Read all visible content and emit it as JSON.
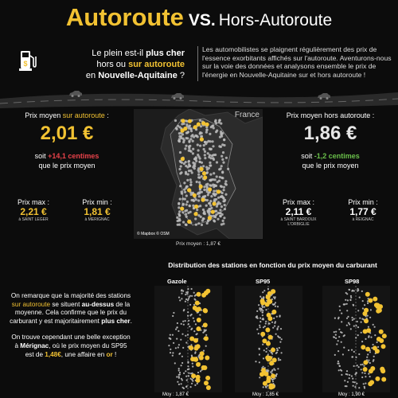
{
  "header": {
    "title_main": "Autoroute",
    "title_vs": "VS.",
    "title_rest": "Hors-Autoroute"
  },
  "question": {
    "l1a": "Le plein est-il ",
    "l1b": "plus cher",
    "l2a": "hors ou ",
    "l2b": "sur autoroute",
    "l3a": "en ",
    "l3b": "Nouvelle-Aquitaine",
    "l3c": " ?"
  },
  "intro": {
    "l1": "Les automobilistes se plaignent régulièrement des prix de",
    "l2": "l'essence exorbitants affichés sur l'autoroute. Aventurons-nous",
    "l3": "sur la voie des données et analysons ensemble le prix de",
    "l4": "l'énergie en Nouvelle-Aquitaine sur et hors autoroute !"
  },
  "map": {
    "label": "France",
    "credit": "© Mapbox  © OSM",
    "avg_caption": "Prix moyen : 1,87 €"
  },
  "left": {
    "label_a": "Prix moyen ",
    "label_b": "sur autoroute",
    "label_c": " :",
    "price": "2,01 €",
    "diff_a": "soit ",
    "diff_b": "+14,1 centimes",
    "diff_l2": "que le prix moyen",
    "max_label": "Prix max :",
    "max_value": "2,21 €",
    "max_place": "à SAINT LEGER",
    "min_label": "Prix min :",
    "min_value": "1,81 €",
    "min_place": "à MERIGNAC"
  },
  "right": {
    "label": "Prix moyen hors autoroute :",
    "price": "1,86 €",
    "diff_a": "soit ",
    "diff_b": "-1,2 centimes",
    "diff_l2": "que le prix moyen",
    "max_label": "Prix max :",
    "max_value": "2,11 €",
    "max_place": "à SAINT BARDOUX",
    "max_place2": "L'ORBIGLIE",
    "min_label": "Prix min :",
    "min_value": "1,77 €",
    "min_place": "à REIGNAC"
  },
  "distribution": {
    "title": "Distribution des stations en fonction du prix moyen du carburant",
    "panels": [
      {
        "name": "Gazole",
        "avg": "Moy : 1,87 €"
      },
      {
        "name": "SP95",
        "avg": "Moy : 1,85 €"
      },
      {
        "name": "SP98",
        "avg": "Moy : 1,90 €"
      }
    ]
  },
  "conclusion": {
    "p1_l1": "On remarque que la majorité des stations",
    "p1_l2a": "sur autoroute",
    "p1_l2b": " se situent ",
    "p1_l2c": "au-dessus",
    "p1_l2d": " de la",
    "p1_l3": "moyenne. Cela confirme que le prix du",
    "p1_l4a": "carburant y est majoritairement ",
    "p1_l4b": "plus cher",
    "p1_l4c": ".",
    "p2_l1": "On trouve cependant une belle exception",
    "p2_l2a": "à ",
    "p2_l2b": "Mérignac",
    "p2_l2c": ", où le prix moyen du SP95",
    "p2_l3a": "est de ",
    "p2_l3b": "1,48€",
    "p2_l3c": ", une affaire en ",
    "p2_l3d": "or",
    "p2_l3e": " !"
  },
  "colors": {
    "accent": "#f2c232",
    "positive_diff": "#e8424a",
    "negative_diff": "#6ac04a",
    "station_dot": "#bdbdbd",
    "highway_dot": "#f2c232"
  },
  "icons": [
    "gas-pump-icon",
    "car-icon"
  ]
}
